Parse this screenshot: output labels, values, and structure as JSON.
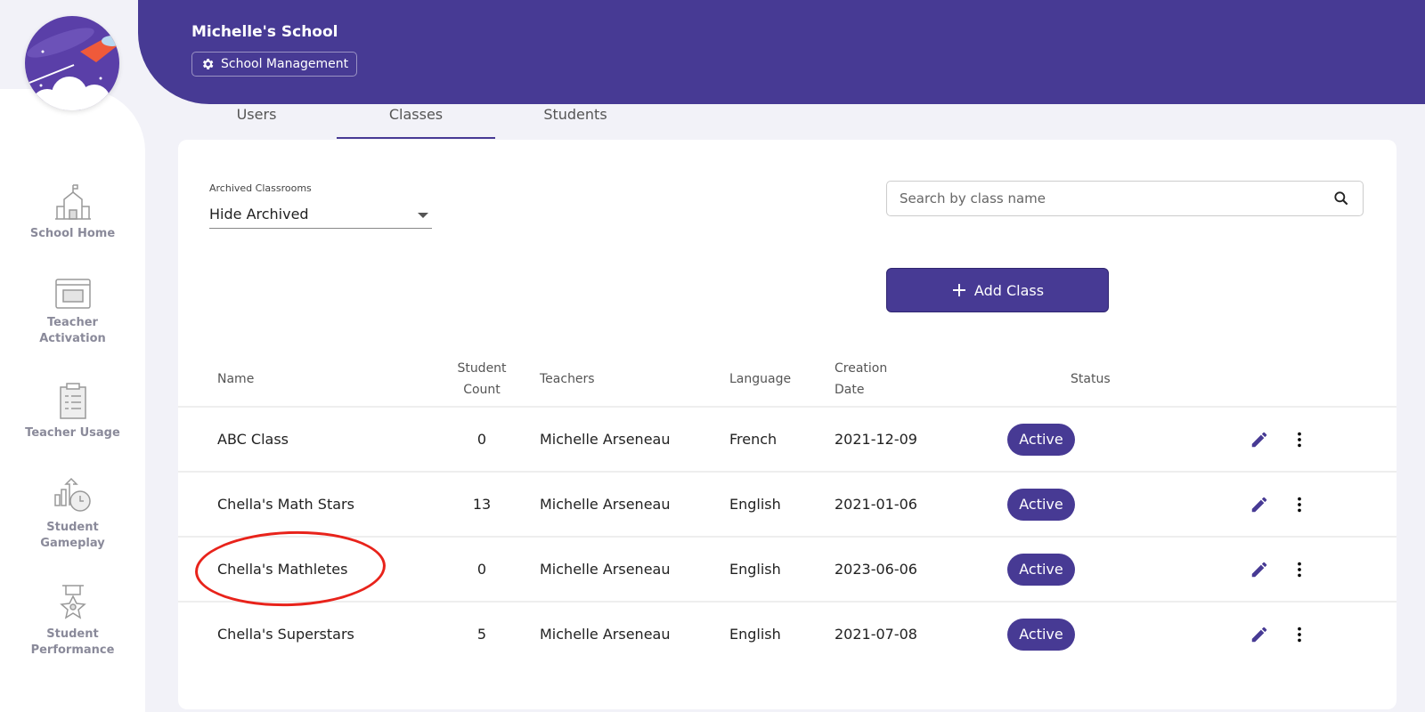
{
  "header": {
    "school_name": "Michelle's School",
    "management_label": "School Management"
  },
  "sidebar": {
    "items": [
      {
        "label": "School Home",
        "icon": "school-icon"
      },
      {
        "label": "Teacher Activation",
        "icon": "calendar-book-icon"
      },
      {
        "label": "Teacher Usage",
        "icon": "clipboard-checklist-icon"
      },
      {
        "label": "Student Gameplay",
        "icon": "chart-clock-icon"
      },
      {
        "label": "Student Performance",
        "icon": "medal-icon"
      }
    ]
  },
  "tabs": [
    {
      "label": "Users"
    },
    {
      "label": "Classes",
      "active": true
    },
    {
      "label": "Students"
    }
  ],
  "filter": {
    "label": "Archived Classrooms",
    "value": "Hide Archived"
  },
  "search": {
    "placeholder": "Search by class name"
  },
  "add_button": {
    "label": "Add Class"
  },
  "table": {
    "headers": {
      "name": "Name",
      "count_1": "Student",
      "count_2": "Count",
      "teachers": "Teachers",
      "language": "Language",
      "date_1": "Creation",
      "date_2": "Date",
      "status": "Status"
    },
    "rows": [
      {
        "name": "ABC Class",
        "count": "0",
        "teachers": "Michelle Arseneau",
        "language": "French",
        "date": "2021-12-09",
        "status": "Active"
      },
      {
        "name": "Chella's Math Stars",
        "count": "13",
        "teachers": "Michelle Arseneau",
        "language": "English",
        "date": "2021-01-06",
        "status": "Active"
      },
      {
        "name": "Chella's Mathletes",
        "count": "0",
        "teachers": "Michelle Arseneau",
        "language": "English",
        "date": "2023-06-06",
        "status": "Active",
        "highlighted": true
      },
      {
        "name": "Chella's Superstars",
        "count": "5",
        "teachers": "Michelle Arseneau",
        "language": "English",
        "date": "2021-07-08",
        "status": "Active"
      }
    ]
  },
  "colors": {
    "primary": "#473a94",
    "highlight": "#e8231b",
    "background": "#f2f2f8"
  }
}
